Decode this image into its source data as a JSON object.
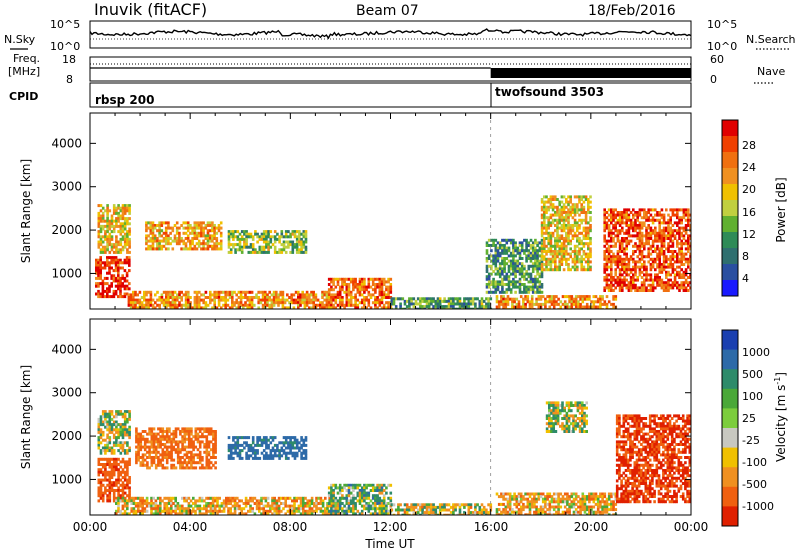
{
  "header": {
    "station": "Inuvik (fitACF)",
    "beam": "Beam 07",
    "date": "18/Feb/2016"
  },
  "noise_panel": {
    "left_label": "N.Sky",
    "right_label": "N.Search",
    "ticks": [
      "10^5",
      "10^0"
    ]
  },
  "freq_panel": {
    "left_label_1": "Freq.",
    "left_label_2": "[MHz]",
    "left_ticks": [
      "18",
      "8"
    ],
    "right_label": "Nave",
    "right_ticks": [
      "60",
      "0"
    ]
  },
  "cpid_panel": {
    "label": "CPID",
    "programs": [
      {
        "name": "rbsp 200",
        "start_hour": 0
      },
      {
        "name": "twofsound 3503",
        "start_hour": 16
      }
    ]
  },
  "power_panel": {
    "ylabel": "Slant Range [km]",
    "colorbar_label": "Power [dB]",
    "colorbar_ticks": [
      "28",
      "24",
      "20",
      "16",
      "12",
      "8",
      "4"
    ],
    "colorbar_colors": [
      "#e00000",
      "#f04000",
      "#f07010",
      "#f09020",
      "#f0c000",
      "#c0d040",
      "#60b030",
      "#2e8b57",
      "#2f6f6f",
      "#2a4fa0",
      "#1a1aff"
    ]
  },
  "velocity_panel": {
    "ylabel": "Slant Range [km]",
    "colorbar_label": "Velocity [m s",
    "colorbar_unit_sup": "-1",
    "colorbar_label_end": "]",
    "colorbar_ticks": [
      "1000",
      "500",
      "100",
      "25",
      "-25",
      "-100",
      "-500",
      "-1000"
    ],
    "colorbar_colors": [
      "#1a3fb0",
      "#2d6aa8",
      "#2e8b6a",
      "#4aa838",
      "#7ccd3c",
      "#c8c8c0",
      "#f0c000",
      "#f09020",
      "#f06010",
      "#e02000"
    ]
  },
  "x_axis": {
    "label": "Time UT",
    "tick_labels": [
      "00:00",
      "04:00",
      "08:00",
      "12:00",
      "16:00",
      "20:00",
      "00:00"
    ]
  },
  "chart_data": {
    "type": "heatmap",
    "title": "Inuvik (fitACF)   Beam 07   18/Feb/2016",
    "xlabel": "Time UT",
    "x_range_hours": [
      0,
      24
    ],
    "y_range_km": [
      180,
      4700
    ],
    "y_ticks_km": [
      1000,
      2000,
      3000,
      4000
    ],
    "panels": [
      {
        "name": "Power",
        "units": "dB",
        "scale": [
          0,
          30
        ],
        "echo_regions": [
          {
            "t0": 0.2,
            "t1": 1.6,
            "r0": 450,
            "r1": 1400,
            "value": 28
          },
          {
            "t0": 0.3,
            "t1": 1.6,
            "r0": 1500,
            "r1": 2600,
            "value": 18
          },
          {
            "t0": 2.2,
            "t1": 5.2,
            "r0": 1600,
            "r1": 2200,
            "value": 20
          },
          {
            "t0": 5.5,
            "t1": 8.6,
            "r0": 1500,
            "r1": 2000,
            "value": 13
          },
          {
            "t0": 1.5,
            "t1": 9.5,
            "r0": 200,
            "r1": 600,
            "value": 22
          },
          {
            "t0": 9.5,
            "t1": 12.0,
            "r0": 200,
            "r1": 900,
            "value": 24
          },
          {
            "t0": 12.0,
            "t1": 16.0,
            "r0": 200,
            "r1": 450,
            "value": 10
          },
          {
            "t0": 15.8,
            "t1": 18.0,
            "r0": 600,
            "r1": 1800,
            "value": 9
          },
          {
            "t0": 16.2,
            "t1": 21.0,
            "r0": 200,
            "r1": 500,
            "value": 22
          },
          {
            "t0": 18.0,
            "t1": 20.0,
            "r0": 1100,
            "r1": 2800,
            "value": 18
          },
          {
            "t0": 20.5,
            "t1": 24.0,
            "r0": 600,
            "r1": 2500,
            "value": 26
          }
        ]
      },
      {
        "name": "Velocity",
        "units": "m s-1",
        "scale": [
          -1000,
          1000
        ],
        "echo_regions": [
          {
            "t0": 0.3,
            "t1": 1.6,
            "r0": 1600,
            "r1": 2600,
            "value": 0
          },
          {
            "t0": 0.3,
            "t1": 1.6,
            "r0": 500,
            "r1": 1500,
            "value": -600
          },
          {
            "t0": 1.8,
            "t1": 5.0,
            "r0": 1300,
            "r1": 2200,
            "value": -400
          },
          {
            "t0": 5.5,
            "t1": 8.6,
            "r0": 1500,
            "r1": 2000,
            "value": 500
          },
          {
            "t0": 1.0,
            "t1": 10.0,
            "r0": 200,
            "r1": 600,
            "value": -150
          },
          {
            "t0": 9.5,
            "t1": 12.0,
            "r0": 200,
            "r1": 900,
            "value": 100
          },
          {
            "t0": 12.0,
            "t1": 16.0,
            "r0": 200,
            "r1": 450,
            "value": -60
          },
          {
            "t0": 16.2,
            "t1": 21.0,
            "r0": 200,
            "r1": 700,
            "value": -150
          },
          {
            "t0": 18.2,
            "t1": 19.8,
            "r0": 2100,
            "r1": 2800,
            "value": 0
          },
          {
            "t0": 21.0,
            "t1": 24.0,
            "r0": 500,
            "r1": 2500,
            "value": -800
          }
        ]
      }
    ]
  }
}
